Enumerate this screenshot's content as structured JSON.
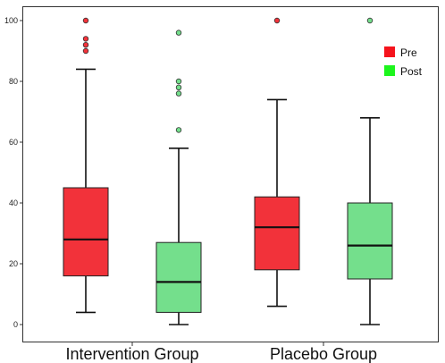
{
  "chart_data": {
    "type": "boxplot",
    "categories": [
      "Intervention Group",
      "Placebo Group"
    ],
    "ylim": [
      0,
      100
    ],
    "yticks": [
      0,
      20,
      40,
      60,
      80,
      100
    ],
    "grid": false,
    "legend_position": "top-right",
    "series": [
      {
        "name": "Pre",
        "color": "#f2323a",
        "boxes": [
          {
            "category": "Intervention Group",
            "whisker_low": 4,
            "q1": 16,
            "median": 28,
            "q3": 45,
            "whisker_high": 84,
            "outliers": [
              90,
              92,
              94,
              100
            ]
          },
          {
            "category": "Placebo Group",
            "whisker_low": 6,
            "q1": 18,
            "median": 32,
            "q3": 42,
            "whisker_high": 74,
            "outliers": [
              100
            ]
          }
        ]
      },
      {
        "name": "Post",
        "color": "#74df8c",
        "boxes": [
          {
            "category": "Intervention Group",
            "whisker_low": 0,
            "q1": 4,
            "median": 14,
            "q3": 27,
            "whisker_high": 58,
            "outliers": [
              64,
              76,
              78,
              80,
              96
            ]
          },
          {
            "category": "Placebo Group",
            "whisker_low": 0,
            "q1": 15,
            "median": 26,
            "q3": 40,
            "whisker_high": 68,
            "outliers": [
              100
            ]
          }
        ]
      }
    ],
    "legend": [
      {
        "label": "Pre",
        "color": "#f5131c"
      },
      {
        "label": "Post",
        "color": "#1df51d"
      }
    ]
  }
}
